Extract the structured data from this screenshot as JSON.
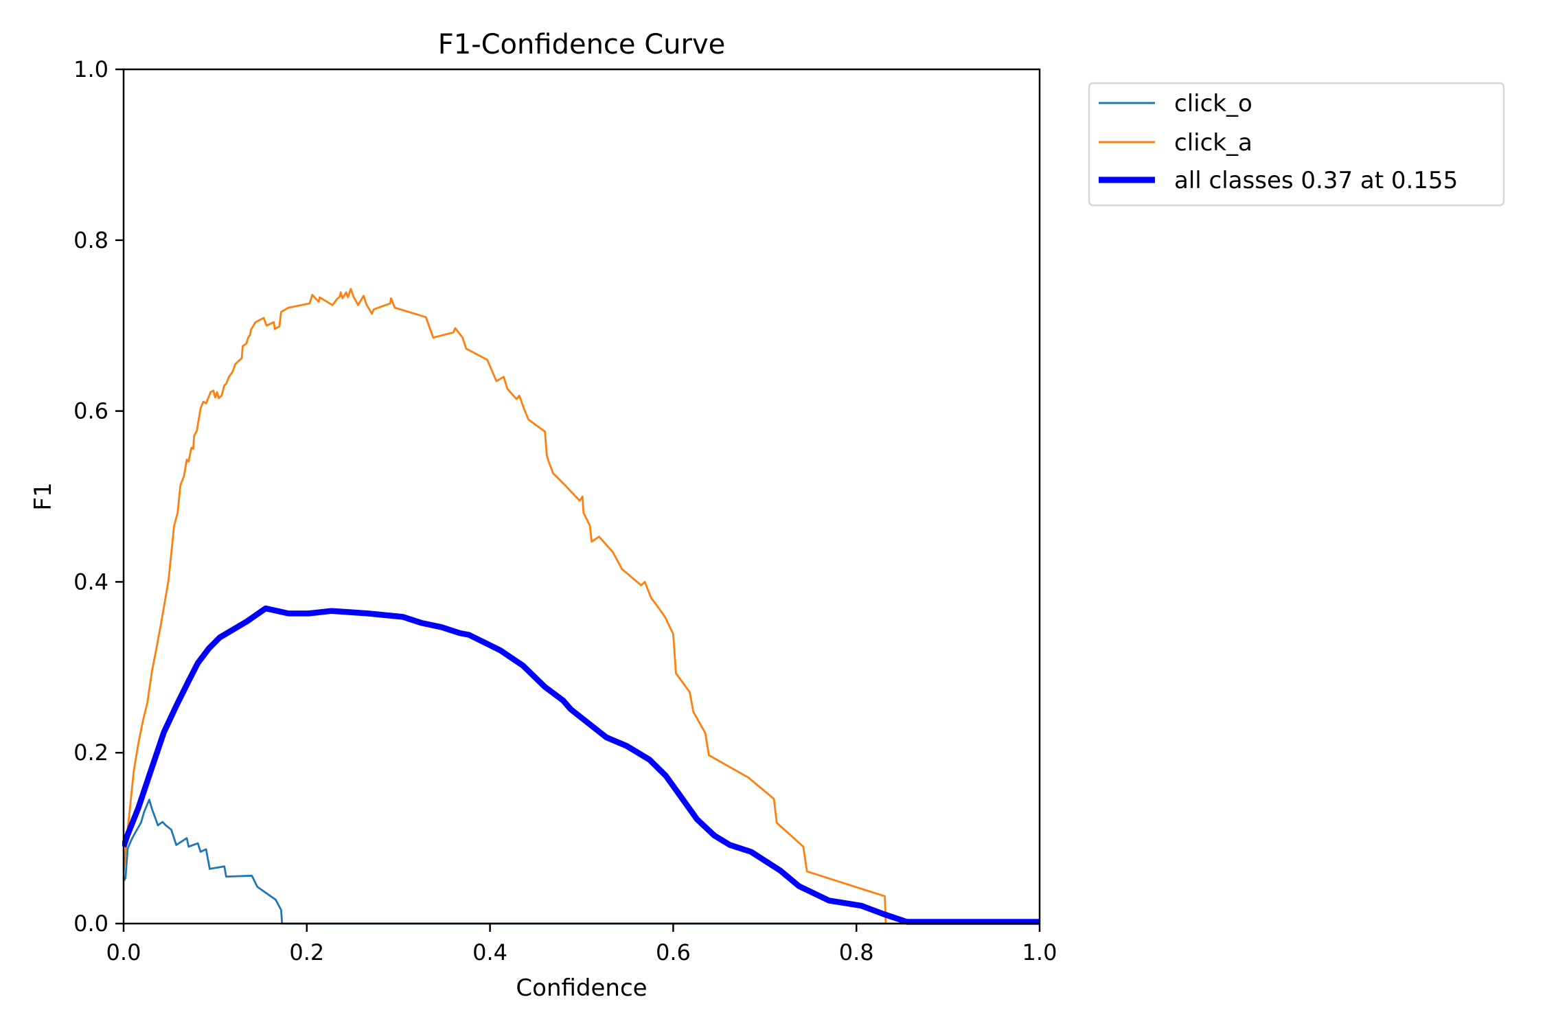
{
  "chart_data": {
    "type": "line",
    "title": "F1-Confidence Curve",
    "xlabel": "Confidence",
    "ylabel": "F1",
    "xlim": [
      0.0,
      1.0
    ],
    "ylim": [
      0.0,
      1.0
    ],
    "grid": false,
    "legend_position": "outside-top-right",
    "xticks": [
      "0.0",
      "0.2",
      "0.4",
      "0.6",
      "0.8",
      "1.0"
    ],
    "yticks": [
      "0.0",
      "0.2",
      "0.4",
      "0.6",
      "0.8",
      "1.0"
    ],
    "series": [
      {
        "name": "click_o",
        "legend_label": "click_o",
        "color": "#1f77b4",
        "line_style": "thin",
        "points": [
          [
            0.0,
            0.05
          ],
          [
            0.002,
            0.053
          ],
          [
            0.0045,
            0.088
          ],
          [
            0.009,
            0.099
          ],
          [
            0.0125,
            0.106
          ],
          [
            0.019,
            0.118
          ],
          [
            0.0225,
            0.131
          ],
          [
            0.028,
            0.145
          ],
          [
            0.031,
            0.134
          ],
          [
            0.0375,
            0.115
          ],
          [
            0.0425,
            0.119
          ],
          [
            0.046,
            0.115
          ],
          [
            0.052,
            0.11
          ],
          [
            0.0575,
            0.092
          ],
          [
            0.069,
            0.1
          ],
          [
            0.071,
            0.09
          ],
          [
            0.081,
            0.094
          ],
          [
            0.084,
            0.084
          ],
          [
            0.09,
            0.087
          ],
          [
            0.094,
            0.064
          ],
          [
            0.11,
            0.067
          ],
          [
            0.112,
            0.055
          ],
          [
            0.14,
            0.056
          ],
          [
            0.146,
            0.043
          ],
          [
            0.166,
            0.028
          ],
          [
            0.172,
            0.016
          ],
          [
            0.173,
            0.0
          ],
          [
            1.0,
            0.0
          ]
        ]
      },
      {
        "name": "click_a",
        "legend_label": "click_a",
        "color": "#ff7f0e",
        "line_style": "thin",
        "points": [
          [
            0.0,
            0.06
          ],
          [
            0.003,
            0.095
          ],
          [
            0.0075,
            0.141
          ],
          [
            0.011,
            0.178
          ],
          [
            0.016,
            0.21
          ],
          [
            0.021,
            0.237
          ],
          [
            0.026,
            0.259
          ],
          [
            0.031,
            0.296
          ],
          [
            0.036,
            0.323
          ],
          [
            0.041,
            0.352
          ],
          [
            0.046,
            0.383
          ],
          [
            0.049,
            0.402
          ],
          [
            0.052,
            0.433
          ],
          [
            0.055,
            0.465
          ],
          [
            0.059,
            0.481
          ],
          [
            0.062,
            0.513
          ],
          [
            0.066,
            0.524
          ],
          [
            0.069,
            0.543
          ],
          [
            0.071,
            0.541
          ],
          [
            0.074,
            0.557
          ],
          [
            0.076,
            0.556
          ],
          [
            0.077,
            0.571
          ],
          [
            0.08,
            0.577
          ],
          [
            0.081,
            0.584
          ],
          [
            0.084,
            0.603
          ],
          [
            0.087,
            0.611
          ],
          [
            0.09,
            0.609
          ],
          [
            0.095,
            0.622
          ],
          [
            0.098,
            0.624
          ],
          [
            0.1,
            0.616
          ],
          [
            0.102,
            0.622
          ],
          [
            0.104,
            0.615
          ],
          [
            0.107,
            0.618
          ],
          [
            0.11,
            0.63
          ],
          [
            0.112,
            0.632
          ],
          [
            0.115,
            0.64
          ],
          [
            0.119,
            0.646
          ],
          [
            0.122,
            0.655
          ],
          [
            0.129,
            0.662
          ],
          [
            0.13,
            0.676
          ],
          [
            0.134,
            0.679
          ],
          [
            0.136,
            0.686
          ],
          [
            0.138,
            0.689
          ],
          [
            0.139,
            0.695
          ],
          [
            0.144,
            0.704
          ],
          [
            0.153,
            0.709
          ],
          [
            0.156,
            0.7
          ],
          [
            0.164,
            0.704
          ],
          [
            0.165,
            0.696
          ],
          [
            0.17,
            0.699
          ],
          [
            0.172,
            0.716
          ],
          [
            0.18,
            0.721
          ],
          [
            0.203,
            0.726
          ],
          [
            0.206,
            0.736
          ],
          [
            0.213,
            0.728
          ],
          [
            0.214,
            0.733
          ],
          [
            0.228,
            0.724
          ],
          [
            0.233,
            0.731
          ],
          [
            0.236,
            0.734
          ],
          [
            0.237,
            0.739
          ],
          [
            0.239,
            0.732
          ],
          [
            0.243,
            0.739
          ],
          [
            0.245,
            0.733
          ],
          [
            0.248,
            0.743
          ],
          [
            0.251,
            0.734
          ],
          [
            0.256,
            0.724
          ],
          [
            0.262,
            0.735
          ],
          [
            0.265,
            0.725
          ],
          [
            0.271,
            0.714
          ],
          [
            0.273,
            0.719
          ],
          [
            0.291,
            0.726
          ],
          [
            0.292,
            0.732
          ],
          [
            0.296,
            0.721
          ],
          [
            0.33,
            0.71
          ],
          [
            0.338,
            0.686
          ],
          [
            0.36,
            0.692
          ],
          [
            0.362,
            0.697
          ],
          [
            0.37,
            0.686
          ],
          [
            0.374,
            0.673
          ],
          [
            0.397,
            0.66
          ],
          [
            0.407,
            0.635
          ],
          [
            0.415,
            0.64
          ],
          [
            0.419,
            0.626
          ],
          [
            0.429,
            0.614
          ],
          [
            0.432,
            0.618
          ],
          [
            0.437,
            0.603
          ],
          [
            0.442,
            0.59
          ],
          [
            0.46,
            0.576
          ],
          [
            0.462,
            0.548
          ],
          [
            0.464,
            0.541
          ],
          [
            0.469,
            0.527
          ],
          [
            0.482,
            0.513
          ],
          [
            0.498,
            0.495
          ],
          [
            0.501,
            0.5
          ],
          [
            0.502,
            0.481
          ],
          [
            0.509,
            0.466
          ],
          [
            0.511,
            0.447
          ],
          [
            0.519,
            0.453
          ],
          [
            0.534,
            0.435
          ],
          [
            0.544,
            0.415
          ],
          [
            0.565,
            0.396
          ],
          [
            0.569,
            0.4
          ],
          [
            0.576,
            0.381
          ],
          [
            0.581,
            0.374
          ],
          [
            0.591,
            0.359
          ],
          [
            0.6,
            0.339
          ],
          [
            0.603,
            0.293
          ],
          [
            0.618,
            0.271
          ],
          [
            0.622,
            0.248
          ],
          [
            0.635,
            0.223
          ],
          [
            0.639,
            0.197
          ],
          [
            0.682,
            0.171
          ],
          [
            0.71,
            0.146
          ],
          [
            0.713,
            0.118
          ],
          [
            0.742,
            0.09
          ],
          [
            0.746,
            0.061
          ],
          [
            0.831,
            0.032
          ],
          [
            0.832,
            0.0
          ],
          [
            1.0,
            0.0
          ]
        ]
      },
      {
        "name": "all classes",
        "legend_label": "all classes 0.37 at 0.155",
        "color": "#0000ff",
        "line_style": "thick",
        "best_f1": 0.37,
        "best_confidence": 0.155,
        "points": [
          [
            0.0,
            0.09
          ],
          [
            0.004,
            0.103
          ],
          [
            0.016,
            0.135
          ],
          [
            0.031,
            0.183
          ],
          [
            0.044,
            0.224
          ],
          [
            0.058,
            0.256
          ],
          [
            0.071,
            0.284
          ],
          [
            0.081,
            0.305
          ],
          [
            0.093,
            0.322
          ],
          [
            0.105,
            0.335
          ],
          [
            0.135,
            0.354
          ],
          [
            0.155,
            0.369
          ],
          [
            0.18,
            0.363
          ],
          [
            0.202,
            0.363
          ],
          [
            0.227,
            0.366
          ],
          [
            0.267,
            0.363
          ],
          [
            0.305,
            0.359
          ],
          [
            0.325,
            0.352
          ],
          [
            0.347,
            0.347
          ],
          [
            0.367,
            0.34
          ],
          [
            0.377,
            0.338
          ],
          [
            0.411,
            0.32
          ],
          [
            0.436,
            0.302
          ],
          [
            0.46,
            0.277
          ],
          [
            0.48,
            0.261
          ],
          [
            0.488,
            0.251
          ],
          [
            0.527,
            0.218
          ],
          [
            0.549,
            0.208
          ],
          [
            0.574,
            0.192
          ],
          [
            0.592,
            0.173
          ],
          [
            0.608,
            0.149
          ],
          [
            0.626,
            0.122
          ],
          [
            0.645,
            0.103
          ],
          [
            0.662,
            0.092
          ],
          [
            0.685,
            0.084
          ],
          [
            0.717,
            0.062
          ],
          [
            0.737,
            0.044
          ],
          [
            0.77,
            0.027
          ],
          [
            0.805,
            0.021
          ],
          [
            0.83,
            0.011
          ],
          [
            0.855,
            0.002
          ],
          [
            1.0,
            0.002
          ]
        ]
      }
    ]
  }
}
